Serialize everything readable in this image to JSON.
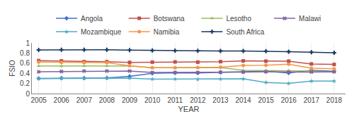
{
  "chart_data": {
    "type": "line",
    "x_label": "YEAR",
    "y_label": "FSIO",
    "x": [
      2005,
      2006,
      2007,
      2008,
      2009,
      2010,
      2011,
      2012,
      2013,
      2014,
      2015,
      2016,
      2017,
      2018
    ],
    "series": [
      {
        "name": "Angola",
        "color": "#4472C4",
        "marker": "diamond",
        "values": [
          0.3,
          0.305,
          0.305,
          0.31,
          0.34,
          0.4,
          0.41,
          0.405,
          0.42,
          0.43,
          0.44,
          0.405,
          0.46,
          0.44
        ]
      },
      {
        "name": "Botswana",
        "color": "#C0504D",
        "marker": "square",
        "values": [
          0.65,
          0.645,
          0.63,
          0.63,
          0.615,
          0.62,
          0.625,
          0.62,
          0.63,
          0.645,
          0.64,
          0.64,
          0.585,
          0.575
        ]
      },
      {
        "name": "Lesotho",
        "color": "#9BBB59",
        "marker": "triangle",
        "values": [
          0.545,
          0.54,
          0.545,
          0.545,
          0.545,
          0.51,
          0.51,
          0.51,
          0.515,
          0.46,
          0.455,
          0.45,
          0.445,
          0.425
        ]
      },
      {
        "name": "Malawi",
        "color": "#8064A2",
        "marker": "x",
        "values": [
          0.43,
          0.435,
          0.445,
          0.445,
          0.445,
          0.415,
          0.415,
          0.415,
          0.42,
          0.425,
          0.43,
          0.425,
          0.425,
          0.43
        ]
      },
      {
        "name": "Mozambique",
        "color": "#4BACC6",
        "marker": "star",
        "values": [
          0.295,
          0.3,
          0.3,
          0.305,
          0.305,
          0.285,
          0.285,
          0.28,
          0.285,
          0.29,
          0.22,
          0.2,
          0.245,
          0.245
        ]
      },
      {
        "name": "Namibia",
        "color": "#F79646",
        "marker": "circle",
        "values": [
          0.62,
          0.615,
          0.61,
          0.61,
          0.55,
          0.51,
          0.51,
          0.515,
          0.52,
          0.555,
          0.56,
          0.58,
          0.5,
          0.49
        ]
      },
      {
        "name": "South Africa",
        "color": "#17375E",
        "marker": "plus",
        "values": [
          0.86,
          0.865,
          0.865,
          0.865,
          0.858,
          0.852,
          0.848,
          0.845,
          0.84,
          0.84,
          0.838,
          0.828,
          0.815,
          0.805
        ]
      }
    ],
    "xlim": [
      2004.7,
      2018.5
    ],
    "xticks": [
      2005,
      2006,
      2007,
      2008,
      2009,
      2010,
      2011,
      2012,
      2013,
      2014,
      2015,
      2016,
      2017,
      2018
    ],
    "ylim": [
      0,
      1.0
    ],
    "yticks": [
      0,
      0.2,
      0.4,
      0.6,
      0.8,
      1
    ],
    "grid": "x",
    "legend": "top"
  }
}
